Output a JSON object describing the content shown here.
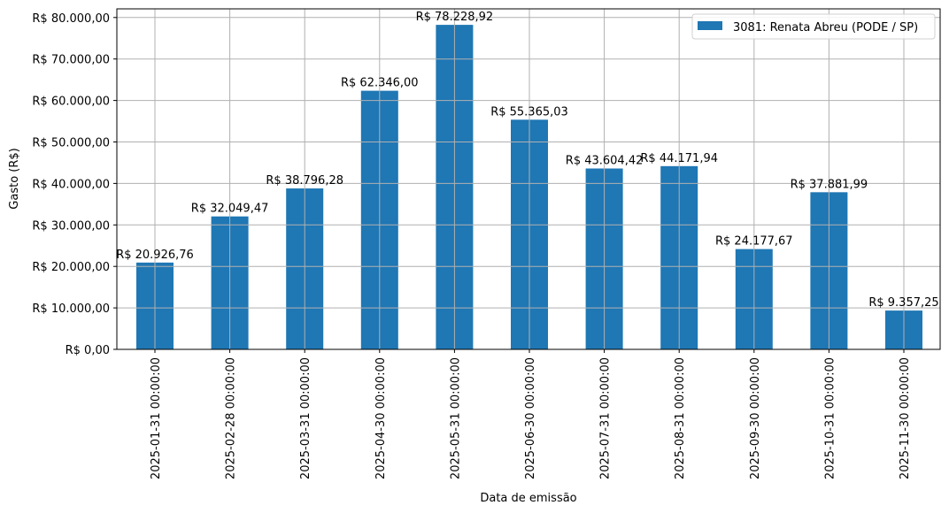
{
  "chart_data": {
    "type": "bar",
    "title": "",
    "xlabel": "Data de emissão",
    "ylabel": "Gasto (R$)",
    "ylim": [
      0,
      82000
    ],
    "grid": true,
    "legend_position": "upper right",
    "bar_color": "#1f77b4",
    "grid_color": "#b0b0b0",
    "categories": [
      "2025-01-31 00:00:00",
      "2025-02-28 00:00:00",
      "2025-03-31 00:00:00",
      "2025-04-30 00:00:00",
      "2025-05-31 00:00:00",
      "2025-06-30 00:00:00",
      "2025-07-31 00:00:00",
      "2025-08-31 00:00:00",
      "2025-09-30 00:00:00",
      "2025-10-31 00:00:00",
      "2025-11-30 00:00:00"
    ],
    "series": [
      {
        "name": "3081: Renata Abreu (PODE / SP)",
        "values": [
          20926.76,
          32049.47,
          38796.28,
          62346.0,
          78228.92,
          55365.03,
          43604.42,
          44171.94,
          24177.67,
          37881.99,
          9357.25
        ],
        "labels": [
          "R$ 20.926,76",
          "R$ 32.049,47",
          "R$ 38.796,28",
          "R$ 62.346,00",
          "R$ 78.228,92",
          "R$ 55.365,03",
          "R$ 43.604,42",
          "R$ 44.171,94",
          "R$ 24.177,67",
          "R$ 37.881,99",
          "R$ 9.357,25"
        ]
      }
    ],
    "yticks": [
      0,
      10000,
      20000,
      30000,
      40000,
      50000,
      60000,
      70000,
      80000
    ],
    "ytick_labels": [
      "R$ 0,00",
      "R$ 10.000,00",
      "R$ 20.000,00",
      "R$ 30.000,00",
      "R$ 40.000,00",
      "R$ 50.000,00",
      "R$ 60.000,00",
      "R$ 70.000,00",
      "R$ 80.000,00"
    ]
  }
}
